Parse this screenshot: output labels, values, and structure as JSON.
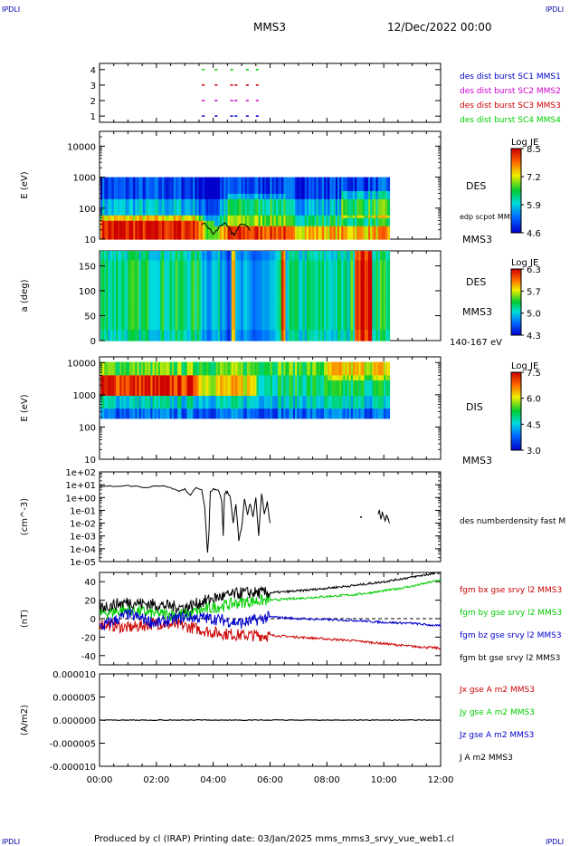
{
  "header": {
    "left_tag": "IPDLI",
    "right_tag": "IPDLI",
    "spacecraft": "MMS3",
    "datetime": "12/Dec/2022 00:00"
  },
  "footer": {
    "left_tag": "IPDLI",
    "right_tag": "IPDLI",
    "credit": "Produced by cl (IRAP)   Printing date: 03/Jan/2025   mms_mms3_srvy_vue_web1.cl"
  },
  "colors": {
    "blue": "#0000cc",
    "magenta": "#cc00cc",
    "red": "#cc0000",
    "green": "#00cc00",
    "black": "#000000"
  },
  "time_axis": {
    "ticks": [
      "00:00",
      "02:00",
      "04:00",
      "06:00",
      "08:00",
      "10:00",
      "12:00"
    ],
    "range_hours": [
      0,
      12
    ]
  },
  "chart_data": [
    {
      "type": "scatter",
      "id": "burst",
      "yticks": [
        "1",
        "2",
        "3",
        "4"
      ],
      "ylim": [
        0.6,
        4.4
      ],
      "legend": [
        {
          "label": "des dist burst SC1 MMS1",
          "color": "#0000cc"
        },
        {
          "label": "des dist burst SC2 MMS2",
          "color": "#cc00cc"
        },
        {
          "label": "des dist burst SC3 MMS3",
          "color": "#cc0000"
        },
        {
          "label": "des dist burst SC4 MMS4",
          "color": "#00cc00"
        }
      ],
      "series": [
        {
          "level": 1,
          "color": "#0000cc",
          "intervals": [
            [
              3.6,
              3.7
            ],
            [
              4.05,
              4.15
            ],
            [
              4.6,
              4.7
            ],
            [
              4.75,
              4.85
            ],
            [
              5.15,
              5.25
            ],
            [
              5.5,
              5.6
            ]
          ]
        },
        {
          "level": 2,
          "color": "#cc00cc",
          "intervals": [
            [
              3.6,
              3.7
            ],
            [
              4.05,
              4.15
            ],
            [
              4.6,
              4.7
            ],
            [
              4.75,
              4.85
            ],
            [
              5.15,
              5.25
            ],
            [
              5.5,
              5.6
            ]
          ]
        },
        {
          "level": 3,
          "color": "#cc0000",
          "intervals": [
            [
              3.6,
              3.7
            ],
            [
              4.05,
              4.15
            ],
            [
              4.6,
              4.7
            ],
            [
              4.75,
              4.85
            ],
            [
              5.15,
              5.25
            ],
            [
              5.5,
              5.6
            ]
          ]
        },
        {
          "level": 4,
          "color": "#00cc00",
          "intervals": [
            [
              3.6,
              3.7
            ],
            [
              4.05,
              4.15
            ],
            [
              4.6,
              4.7
            ],
            [
              5.15,
              5.25
            ],
            [
              5.5,
              5.6
            ]
          ]
        }
      ]
    },
    {
      "type": "heatmap",
      "id": "des-energy",
      "ylabel": "E (eV)",
      "yscale": "log",
      "yticks": [
        "10",
        "100",
        "1000",
        "10000"
      ],
      "ylim": [
        10,
        30000
      ],
      "data_end_hour": 10.2,
      "instrument": "DES",
      "spacecraft": "MMS3",
      "overlay_label": "edp scpot MMS3",
      "colorbar": {
        "title": "Log JE",
        "ticks": [
          "8.5",
          "7.2",
          "5.9",
          "4.6"
        ],
        "range": [
          4.6,
          8.5
        ]
      }
    },
    {
      "type": "heatmap",
      "id": "des-pitch",
      "ylabel": "a (deg)",
      "yticks": [
        "0",
        "50",
        "100",
        "150"
      ],
      "ylim": [
        0,
        180
      ],
      "data_end_hour": 10.2,
      "instrument": "DES",
      "spacecraft": "MMS3",
      "energy_band": "140-167 eV",
      "colorbar": {
        "title": "Log JE",
        "ticks": [
          "6.3",
          "5.7",
          "5.0",
          "4.3"
        ],
        "range": [
          4.3,
          6.3
        ]
      }
    },
    {
      "type": "heatmap",
      "id": "dis-energy",
      "ylabel": "E (eV)",
      "yscale": "log",
      "yticks": [
        "10",
        "100",
        "1000",
        "10000"
      ],
      "ylim": [
        10,
        15000
      ],
      "data_end_hour": 10.2,
      "instrument": "DIS",
      "spacecraft": "MMS3",
      "colorbar": {
        "title": "Log JE",
        "ticks": [
          "7.5",
          "6.0",
          "4.5",
          "3.0"
        ],
        "range": [
          3.0,
          7.5
        ]
      }
    },
    {
      "type": "line",
      "id": "density",
      "ylabel": "(cm^-3)",
      "yscale": "log",
      "yticks": [
        "1e-05",
        "1e-04",
        "1e-03",
        "1e-02",
        "1e-01",
        "1e+00",
        "1e+01",
        "1e+02"
      ],
      "ylim": [
        1e-05,
        100
      ],
      "legend": [
        {
          "label": "des numberdensity fast M",
          "color": "#000000"
        }
      ],
      "x": [
        0,
        0.5,
        1.0,
        1.5,
        2.0,
        2.5,
        2.8,
        3.0,
        3.2,
        3.4,
        3.6,
        3.7,
        3.8,
        3.85,
        3.9,
        4.0,
        4.1,
        4.2,
        4.3,
        4.35,
        4.4,
        4.5,
        4.6,
        4.7,
        4.8,
        4.9,
        5.0,
        5.1,
        5.2,
        5.3,
        5.4,
        5.5,
        5.6,
        5.7,
        5.8,
        5.9,
        6.0
      ],
      "y": [
        8,
        7,
        9,
        6,
        8,
        6,
        3,
        5,
        1.5,
        6,
        4,
        0.2,
        5e-05,
        0.002,
        3,
        5,
        4,
        3,
        0.5,
        0.001,
        2,
        3,
        1,
        0.01,
        0.3,
        0.0004,
        0.005,
        0.8,
        0.05,
        0.3,
        0.03,
        1,
        0.001,
        2,
        0.05,
        0.5,
        0.01
      ],
      "late_x": [
        9.8,
        9.85,
        9.9,
        9.95,
        10.0,
        10.05,
        10.1,
        10.15,
        10.2
      ],
      "late_y": [
        0.05,
        0.1,
        0.02,
        0.08,
        0.03,
        0.015,
        0.04,
        0.02,
        0.01
      ],
      "stray_x": [
        9.2
      ],
      "stray_y": [
        0.03
      ]
    },
    {
      "type": "line",
      "id": "magnetic-field",
      "ylabel": "(nT)",
      "yticks": [
        "-40",
        "-20",
        "0",
        "20",
        "40"
      ],
      "ylim": [
        -50,
        50
      ],
      "legend": [
        {
          "label": "fgm bx gse srvy l2 MMS3",
          "color": "#cc0000"
        },
        {
          "label": "fgm by gse srvy l2 MMS3",
          "color": "#00cc00"
        },
        {
          "label": "fgm bz gse srvy l2 MMS3",
          "color": "#0000cc"
        },
        {
          "label": "fgm bt gse srvy l2 MMS3",
          "color": "#000000"
        }
      ],
      "x": [
        0,
        1,
        2,
        3,
        4,
        5,
        6,
        7,
        8,
        9,
        10,
        11,
        12
      ],
      "series": [
        {
          "name": "bx",
          "color": "#cc0000",
          "y": [
            -5,
            -10,
            -5,
            -8,
            -15,
            -18,
            -18,
            -20,
            -22,
            -24,
            -27,
            -30,
            -32
          ]
        },
        {
          "name": "by",
          "color": "#00cc00",
          "y": [
            5,
            10,
            5,
            5,
            12,
            18,
            20,
            22,
            24,
            26,
            30,
            35,
            42
          ]
        },
        {
          "name": "bz",
          "color": "#0000cc",
          "y": [
            -10,
            5,
            -5,
            2,
            0,
            -5,
            2,
            0,
            -1,
            -2,
            -4,
            -5,
            -8
          ]
        },
        {
          "name": "bt",
          "color": "#000000",
          "y": [
            12,
            18,
            15,
            12,
            22,
            28,
            28,
            30,
            33,
            36,
            40,
            45,
            50
          ]
        }
      ],
      "noise": [
        3,
        3,
        3,
        3
      ]
    },
    {
      "type": "line",
      "id": "current-density",
      "ylabel": "(A/m2)",
      "yticks": [
        "-0.000010",
        "-0.000005",
        "0.000000",
        "0.000005",
        "0.000010"
      ],
      "ylim": [
        -1e-05,
        1e-05
      ],
      "legend": [
        {
          "label": "Jx gse A m2 MMS3",
          "color": "#cc0000"
        },
        {
          "label": "Jy gse A m2 MMS3",
          "color": "#00cc00"
        },
        {
          "label": "Jz gse A m2 MMS3",
          "color": "#0000cc"
        },
        {
          "label": "J A m2 MMS3",
          "color": "#000000"
        }
      ],
      "x": [
        0,
        12
      ],
      "y": [
        0,
        0
      ]
    }
  ]
}
